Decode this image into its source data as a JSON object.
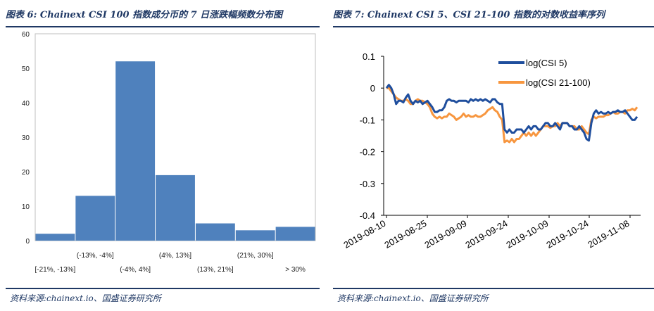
{
  "left": {
    "title": "图表 6: Chainext CSI 100 指数成分币的 7 日涨跌幅频数分布图",
    "source": "资料来源:chainext.io、国盛证券研究所"
  },
  "right": {
    "title": "图表 7: Chainext CSI 5、CSI 21-100 指数的对数收益率序列",
    "source": "资料来源:chainext.io、国盛证券研究所"
  },
  "colors": {
    "bar": "#4f81bd",
    "csi5": "#1f4e9d",
    "csi21": "#f7963f",
    "title": "#1f3864"
  },
  "chart_data": [
    {
      "type": "bar",
      "categories": [
        "[-21%, -13%]",
        "(-13%, -4%]",
        "(-4%, 4%]",
        "(4%, 13%]",
        "(13%, 21%]",
        "(21%, 30%]",
        "> 30%"
      ],
      "values": [
        2,
        13,
        52,
        19,
        5,
        3,
        4
      ],
      "ylim": [
        0,
        60
      ],
      "yticks": [
        0,
        10,
        20,
        30,
        40,
        50,
        60
      ],
      "grid": false,
      "legend": "none"
    },
    {
      "type": "line",
      "x_ticks": [
        "2019-08-10",
        "2019-08-25",
        "2019-09-09",
        "2019-09-24",
        "2019-10-09",
        "2019-10-24",
        "2019-11-08"
      ],
      "ylim": [
        -0.4,
        0.1
      ],
      "yticks": [
        "0.1",
        "0",
        "-0.1",
        "-0.2",
        "-0.3",
        "-0.4"
      ],
      "legend": "top-right",
      "series": [
        {
          "name": "log(CSI 5)",
          "values": [
            0.0,
            0.01,
            0.0,
            -0.02,
            -0.05,
            -0.04,
            -0.04,
            -0.045,
            -0.03,
            -0.02,
            -0.04,
            -0.05,
            -0.04,
            -0.045,
            -0.04,
            -0.05,
            -0.045,
            -0.04,
            -0.05,
            -0.06,
            -0.075,
            -0.075,
            -0.07,
            -0.07,
            -0.06,
            -0.04,
            -0.035,
            -0.04,
            -0.04,
            -0.045,
            -0.04,
            -0.04,
            -0.04,
            -0.04,
            -0.045,
            -0.035,
            -0.04,
            -0.035,
            -0.04,
            -0.035,
            -0.04,
            -0.035,
            -0.04,
            -0.045,
            -0.035,
            -0.035,
            -0.045,
            -0.05,
            -0.05,
            -0.13,
            -0.14,
            -0.13,
            -0.14,
            -0.14,
            -0.13,
            -0.13,
            -0.13,
            -0.14,
            -0.13,
            -0.12,
            -0.13,
            -0.12,
            -0.12,
            -0.13,
            -0.13,
            -0.12,
            -0.11,
            -0.11,
            -0.12,
            -0.12,
            -0.11,
            -0.12,
            -0.13,
            -0.11,
            -0.11,
            -0.11,
            -0.12,
            -0.12,
            -0.13,
            -0.13,
            -0.12,
            -0.13,
            -0.14,
            -0.16,
            -0.165,
            -0.11,
            -0.08,
            -0.07,
            -0.08,
            -0.075,
            -0.08,
            -0.08,
            -0.075,
            -0.08,
            -0.075,
            -0.075,
            -0.07,
            -0.075,
            -0.075,
            -0.07,
            -0.08,
            -0.09,
            -0.1,
            -0.1,
            -0.09
          ]
        },
        {
          "name": "log(CSI 21-100)",
          "values": [
            0.0,
            0.0,
            -0.01,
            -0.02,
            -0.03,
            -0.035,
            -0.04,
            -0.04,
            -0.035,
            -0.04,
            -0.05,
            -0.05,
            -0.04,
            -0.035,
            -0.04,
            -0.04,
            -0.045,
            -0.05,
            -0.06,
            -0.08,
            -0.09,
            -0.095,
            -0.09,
            -0.095,
            -0.09,
            -0.09,
            -0.08,
            -0.085,
            -0.09,
            -0.1,
            -0.095,
            -0.09,
            -0.08,
            -0.09,
            -0.085,
            -0.09,
            -0.09,
            -0.085,
            -0.09,
            -0.09,
            -0.085,
            -0.08,
            -0.07,
            -0.065,
            -0.06,
            -0.07,
            -0.075,
            -0.09,
            -0.1,
            -0.17,
            -0.165,
            -0.17,
            -0.16,
            -0.17,
            -0.16,
            -0.16,
            -0.15,
            -0.14,
            -0.15,
            -0.14,
            -0.15,
            -0.14,
            -0.15,
            -0.14,
            -0.13,
            -0.12,
            -0.12,
            -0.12,
            -0.125,
            -0.12,
            -0.12,
            -0.11,
            -0.12,
            -0.11,
            -0.11,
            -0.11,
            -0.12,
            -0.12,
            -0.12,
            -0.13,
            -0.13,
            -0.12,
            -0.13,
            -0.14,
            -0.145,
            -0.1,
            -0.09,
            -0.095,
            -0.09,
            -0.09,
            -0.09,
            -0.085,
            -0.085,
            -0.08,
            -0.075,
            -0.08,
            -0.08,
            -0.075,
            -0.075,
            -0.08,
            -0.07,
            -0.07,
            -0.065,
            -0.07,
            -0.06
          ]
        }
      ]
    }
  ]
}
